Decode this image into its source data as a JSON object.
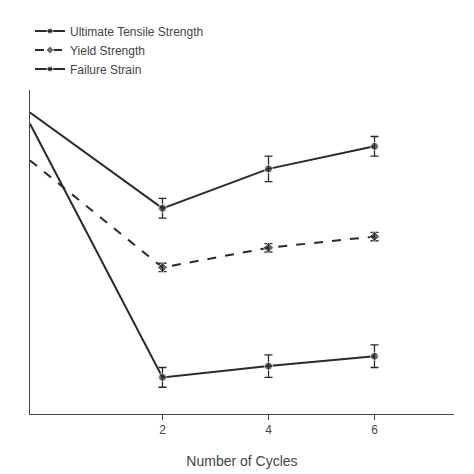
{
  "chart_data": {
    "type": "line",
    "x_label": "Number of Cycles",
    "x": [
      -0.5,
      2,
      4,
      6
    ],
    "series": [
      {
        "name": "Ultimate Tensile Strength",
        "color": "#2a2a2a",
        "marker": "circle",
        "line_style": "solid",
        "values": [
          1.02,
          0.68,
          0.82,
          0.9
        ],
        "errors": [
          null,
          0.035,
          0.045,
          0.035
        ]
      },
      {
        "name": "Yield Strength",
        "color": "#2a2a2a",
        "marker": "diamond",
        "line_style": "dashed",
        "values": [
          0.85,
          0.47,
          0.54,
          0.58
        ],
        "errors": [
          null,
          0.015,
          0.015,
          0.015
        ]
      },
      {
        "name": "Failure Strain",
        "color": "#2a2a2a",
        "marker": "circle",
        "line_style": "solid",
        "values": [
          0.98,
          0.08,
          0.12,
          0.155
        ],
        "errors": [
          null,
          0.035,
          0.04,
          0.04
        ]
      }
    ],
    "xlim": [
      -0.5,
      7.5
    ],
    "xticks": [
      2,
      4,
      6
    ],
    "ylim": [
      -0.05,
      1.1
    ],
    "tick_labels": "x",
    "grid": false,
    "legend": "upper left"
  }
}
